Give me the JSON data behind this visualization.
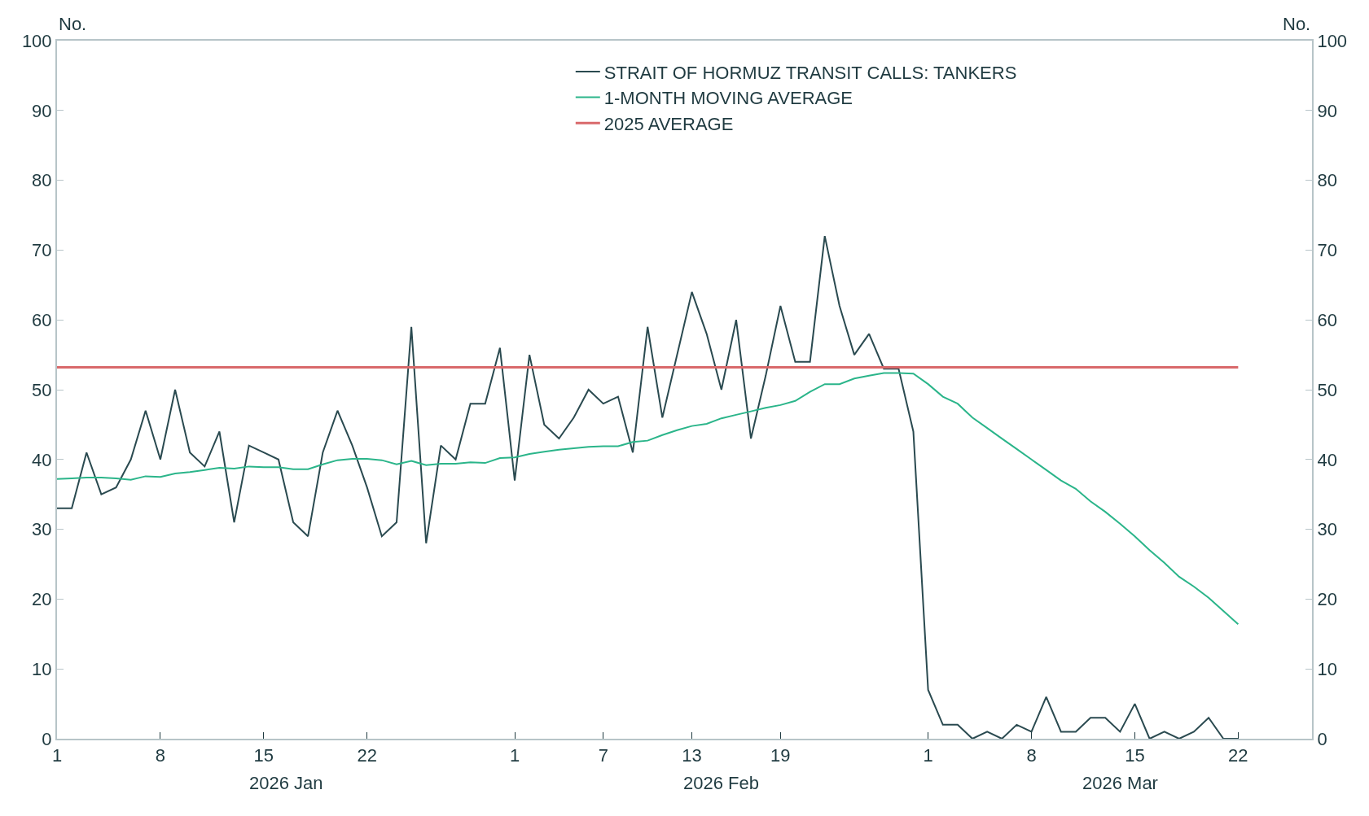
{
  "chart_data": {
    "type": "line",
    "ylabel": "No.",
    "y2label": "No.",
    "x": [
      "2026-01-01",
      "2026-01-02",
      "2026-01-03",
      "2026-01-04",
      "2026-01-05",
      "2026-01-06",
      "2026-01-07",
      "2026-01-08",
      "2026-01-09",
      "2026-01-10",
      "2026-01-11",
      "2026-01-12",
      "2026-01-13",
      "2026-01-14",
      "2026-01-15",
      "2026-01-16",
      "2026-01-17",
      "2026-01-18",
      "2026-01-19",
      "2026-01-20",
      "2026-01-21",
      "2026-01-22",
      "2026-01-23",
      "2026-01-24",
      "2026-01-25",
      "2026-01-26",
      "2026-01-27",
      "2026-01-28",
      "2026-01-29",
      "2026-01-30",
      "2026-01-31",
      "2026-02-01",
      "2026-02-02",
      "2026-02-03",
      "2026-02-04",
      "2026-02-05",
      "2026-02-06",
      "2026-02-07",
      "2026-02-08",
      "2026-02-09",
      "2026-02-10",
      "2026-02-11",
      "2026-02-12",
      "2026-02-13",
      "2026-02-14",
      "2026-02-15",
      "2026-02-16",
      "2026-02-17",
      "2026-02-18",
      "2026-02-19",
      "2026-02-20",
      "2026-02-21",
      "2026-02-22",
      "2026-02-23",
      "2026-02-24",
      "2026-02-25",
      "2026-02-26",
      "2026-02-27",
      "2026-02-28",
      "2026-03-01",
      "2026-03-02",
      "2026-03-03",
      "2026-03-04",
      "2026-03-05",
      "2026-03-06",
      "2026-03-07",
      "2026-03-08",
      "2026-03-09",
      "2026-03-10",
      "2026-03-11",
      "2026-03-12",
      "2026-03-13",
      "2026-03-14",
      "2026-03-15",
      "2026-03-16",
      "2026-03-17",
      "2026-03-18",
      "2026-03-19",
      "2026-03-20",
      "2026-03-21",
      "2026-03-22"
    ],
    "series": [
      {
        "name": "STRAIT OF HORMUZ TRANSIT CALLS: TANKERS",
        "color": "#2a4a50",
        "values": [
          33,
          33,
          41,
          35,
          36,
          40,
          47,
          40,
          50,
          41,
          39,
          44,
          31,
          42,
          41,
          40,
          31,
          29,
          41,
          47,
          42,
          36,
          29,
          31,
          59,
          28,
          42,
          40,
          48,
          48,
          56,
          37,
          55,
          45,
          43,
          46,
          50,
          48,
          49,
          41,
          59,
          46,
          55,
          64,
          58,
          50,
          60,
          43,
          52,
          62,
          54,
          54,
          72,
          62,
          55,
          58,
          53,
          53,
          44,
          7,
          2,
          2,
          0,
          1,
          0,
          2,
          1,
          6,
          1,
          1,
          3,
          3,
          1,
          5,
          0,
          1,
          0,
          1,
          3,
          0,
          0
        ]
      },
      {
        "name": "1-MONTH MOVING AVERAGE",
        "color": "#2bb58a",
        "values": [
          37.2,
          37.3,
          37.4,
          37.4,
          37.3,
          37.1,
          37.6,
          37.5,
          38,
          38.2,
          38.5,
          38.8,
          38.7,
          39,
          38.9,
          38.9,
          38.6,
          38.6,
          39.3,
          39.9,
          40.1,
          40.1,
          39.9,
          39.3,
          39.8,
          39.2,
          39.4,
          39.4,
          39.6,
          39.5,
          40.2,
          40.3,
          40.8,
          41.1,
          41.4,
          41.6,
          41.8,
          41.9,
          41.9,
          42.5,
          42.7,
          43.5,
          44.2,
          44.8,
          45.1,
          45.9,
          46.4,
          46.9,
          47.4,
          47.8,
          48.4,
          49.7,
          50.8,
          50.8,
          51.6,
          52,
          52.4,
          52.4,
          52.3,
          50.8,
          49,
          48,
          46,
          44.5,
          43,
          41.5,
          40,
          38.5,
          37,
          35.8,
          34,
          32.5,
          30.8,
          29,
          27,
          25.2,
          23.2,
          21.8,
          20.2,
          18.3,
          16.4
        ]
      }
    ],
    "ref_lines": [
      {
        "axis": "y",
        "value": 53.2,
        "label": "2025 AVERAGE",
        "color": "#d9696b"
      }
    ],
    "xlim": [
      "2026-01-01",
      "2026-03-27"
    ],
    "xticks": [
      {
        "value": "2026-01-01",
        "label": "1"
      },
      {
        "value": "2026-01-08",
        "label": "8"
      },
      {
        "value": "2026-01-15",
        "label": "15"
      },
      {
        "value": "2026-01-22",
        "label": "22"
      },
      {
        "value": "2026-02-01",
        "label": "1"
      },
      {
        "value": "2026-02-07",
        "label": "7"
      },
      {
        "value": "2026-02-13",
        "label": "13"
      },
      {
        "value": "2026-02-19",
        "label": "19"
      },
      {
        "value": "2026-03-01",
        "label": "1"
      },
      {
        "value": "2026-03-08",
        "label": "8"
      },
      {
        "value": "2026-03-15",
        "label": "15"
      },
      {
        "value": "2026-03-22",
        "label": "22"
      }
    ],
    "annotations": [
      "2026 Jan",
      "2026 Feb",
      "2026 Mar"
    ],
    "ylim": [
      0,
      100
    ],
    "yticks": [
      0,
      10,
      20,
      30,
      40,
      50,
      60,
      70,
      80,
      90,
      100
    ],
    "y2lim": [
      0,
      100
    ],
    "y2ticks": [
      0,
      10,
      20,
      30,
      40,
      50,
      60,
      70,
      80,
      90,
      100
    ],
    "legend": "top right",
    "line_style": "solid"
  }
}
